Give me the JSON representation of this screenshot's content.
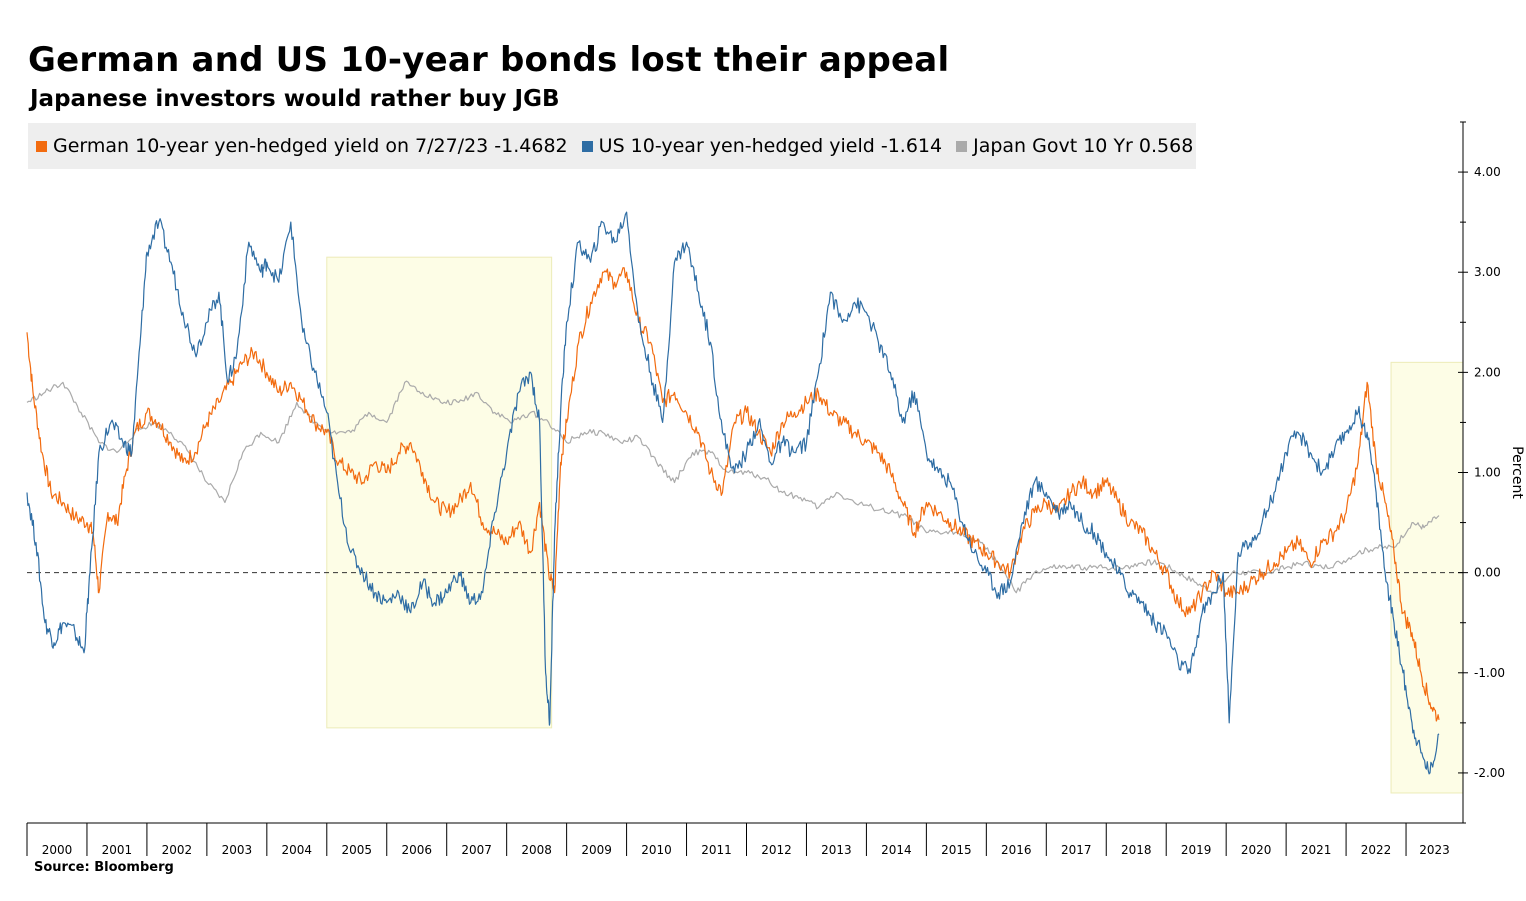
{
  "title": "German and US 10-year bonds lost their appeal",
  "subtitle": "Japanese investors would rather buy JGB",
  "source": "Source: Bloomberg",
  "chart_data": {
    "type": "line",
    "ylabel": "Percent",
    "ylim": [
      -2.5,
      4.5
    ],
    "xlim": [
      2000.0,
      2023.95
    ],
    "y_ticks": [
      4.0,
      3.0,
      2.0,
      1.0,
      0.0,
      -1.0,
      -2.0
    ],
    "y_tick_labels": [
      "4.00",
      "3.00",
      "2.00",
      "1.00",
      "0.00",
      "-1.00",
      "-2.00"
    ],
    "x_tick_labels": [
      "2000",
      "2001",
      "2002",
      "2003",
      "2004",
      "2005",
      "2006",
      "2007",
      "2008",
      "2009",
      "2010",
      "2011",
      "2012",
      "2013",
      "2014",
      "2015",
      "2016",
      "2017",
      "2018",
      "2019",
      "2020",
      "2021",
      "2022",
      "2023"
    ],
    "reference_line": 0.0,
    "highlight_ranges": [
      {
        "x": [
          2005.0,
          2008.75
        ],
        "y": [
          -1.55,
          3.15
        ]
      },
      {
        "x": [
          2022.75,
          2023.95
        ],
        "y": [
          -2.2,
          2.1
        ]
      }
    ],
    "series": [
      {
        "name": "German 10-year yen-hedged yield on 7/27/23 -1.4682",
        "color": "#f26b0f",
        "x": [
          2000.0,
          2000.1,
          2000.25,
          2000.4,
          2000.6,
          2000.8,
          2001.0,
          2001.1,
          2001.2,
          2001.35,
          2001.5,
          2001.65,
          2001.8,
          2002.0,
          2002.2,
          2002.4,
          2002.6,
          2002.8,
          2003.0,
          2003.2,
          2003.4,
          2003.6,
          2003.8,
          2004.0,
          2004.2,
          2004.4,
          2004.6,
          2004.8,
          2005.0,
          2005.2,
          2005.4,
          2005.6,
          2005.8,
          2006.0,
          2006.2,
          2006.4,
          2006.6,
          2006.8,
          2007.0,
          2007.2,
          2007.4,
          2007.6,
          2007.8,
          2008.0,
          2008.2,
          2008.4,
          2008.55,
          2008.7,
          2008.8,
          2008.9,
          2009.0,
          2009.2,
          2009.4,
          2009.6,
          2009.8,
          2010.0,
          2010.2,
          2010.4,
          2010.6,
          2010.8,
          2011.0,
          2011.2,
          2011.4,
          2011.6,
          2011.8,
          2012.0,
          2012.2,
          2012.4,
          2012.6,
          2012.8,
          2013.0,
          2013.2,
          2013.4,
          2013.6,
          2013.8,
          2014.0,
          2014.2,
          2014.4,
          2014.6,
          2014.8,
          2015.0,
          2015.2,
          2015.4,
          2015.6,
          2015.8,
          2016.0,
          2016.2,
          2016.4,
          2016.6,
          2016.8,
          2017.0,
          2017.2,
          2017.4,
          2017.6,
          2017.8,
          2018.0,
          2018.2,
          2018.4,
          2018.6,
          2018.8,
          2019.0,
          2019.2,
          2019.4,
          2019.6,
          2019.8,
          2020.0,
          2020.2,
          2020.4,
          2020.6,
          2020.8,
          2021.0,
          2021.2,
          2021.4,
          2021.6,
          2021.8,
          2022.0,
          2022.2,
          2022.35,
          2022.5,
          2022.65,
          2022.8,
          2022.95,
          2023.1,
          2023.25,
          2023.4,
          2023.55
        ],
        "y": [
          2.4,
          1.8,
          1.2,
          0.8,
          0.7,
          0.55,
          0.5,
          0.4,
          -0.2,
          0.6,
          0.5,
          1.0,
          1.4,
          1.6,
          1.5,
          1.3,
          1.1,
          1.2,
          1.5,
          1.7,
          1.9,
          2.1,
          2.2,
          2.0,
          1.8,
          1.9,
          1.7,
          1.5,
          1.4,
          1.1,
          1.0,
          0.9,
          1.1,
          1.0,
          1.2,
          1.3,
          1.0,
          0.7,
          0.6,
          0.7,
          0.9,
          0.5,
          0.4,
          0.3,
          0.5,
          0.2,
          0.7,
          0.0,
          -0.2,
          1.1,
          1.5,
          2.3,
          2.7,
          3.0,
          2.9,
          3.0,
          2.5,
          2.3,
          1.7,
          1.8,
          1.6,
          1.4,
          1.0,
          0.8,
          1.5,
          1.6,
          1.4,
          1.2,
          1.5,
          1.6,
          1.7,
          1.8,
          1.6,
          1.5,
          1.4,
          1.3,
          1.2,
          1.0,
          0.7,
          0.4,
          0.7,
          0.6,
          0.5,
          0.4,
          0.3,
          0.2,
          0.1,
          0.0,
          0.4,
          0.6,
          0.7,
          0.6,
          0.8,
          0.9,
          0.8,
          0.9,
          0.7,
          0.5,
          0.4,
          0.2,
          0.0,
          -0.3,
          -0.4,
          -0.2,
          0.0,
          -0.2,
          -0.2,
          -0.1,
          0.0,
          0.1,
          0.2,
          0.3,
          0.1,
          0.3,
          0.4,
          0.6,
          1.1,
          1.9,
          1.1,
          0.7,
          0.2,
          -0.4,
          -0.6,
          -1.0,
          -1.3,
          -1.47
        ]
      },
      {
        "name": "US 10-year yen-hedged yield -1.614",
        "color": "#2e6da4",
        "x": [
          2000.0,
          2000.15,
          2000.3,
          2000.45,
          2000.6,
          2000.8,
          2000.95,
          2001.05,
          2001.2,
          2001.4,
          2001.6,
          2001.75,
          2001.9,
          2002.0,
          2002.2,
          2002.4,
          2002.6,
          2002.8,
          2003.0,
          2003.2,
          2003.35,
          2003.5,
          2003.7,
          2003.9,
          2004.0,
          2004.2,
          2004.4,
          2004.6,
          2004.8,
          2005.0,
          2005.2,
          2005.4,
          2005.6,
          2005.8,
          2006.0,
          2006.2,
          2006.4,
          2006.6,
          2006.8,
          2007.0,
          2007.2,
          2007.4,
          2007.6,
          2007.8,
          2008.0,
          2008.2,
          2008.4,
          2008.55,
          2008.65,
          2008.72,
          2008.8,
          2008.9,
          2009.0,
          2009.2,
          2009.4,
          2009.6,
          2009.8,
          2010.0,
          2010.2,
          2010.4,
          2010.6,
          2010.8,
          2011.0,
          2011.2,
          2011.4,
          2011.6,
          2011.8,
          2012.0,
          2012.2,
          2012.4,
          2012.6,
          2012.8,
          2013.0,
          2013.2,
          2013.4,
          2013.6,
          2013.8,
          2014.0,
          2014.2,
          2014.4,
          2014.6,
          2014.8,
          2015.0,
          2015.2,
          2015.4,
          2015.6,
          2015.8,
          2016.0,
          2016.2,
          2016.4,
          2016.6,
          2016.8,
          2017.0,
          2017.2,
          2017.4,
          2017.6,
          2017.8,
          2018.0,
          2018.2,
          2018.4,
          2018.6,
          2018.8,
          2019.0,
          2019.2,
          2019.4,
          2019.6,
          2019.8,
          2019.95,
          2020.05,
          2020.2,
          2020.4,
          2020.6,
          2020.8,
          2021.0,
          2021.2,
          2021.4,
          2021.6,
          2021.8,
          2022.0,
          2022.2,
          2022.35,
          2022.5,
          2022.65,
          2022.8,
          2022.95,
          2023.1,
          2023.25,
          2023.4,
          2023.55
        ],
        "y": [
          0.8,
          0.3,
          -0.5,
          -0.7,
          -0.5,
          -0.6,
          -0.8,
          0.0,
          1.2,
          1.5,
          1.3,
          1.2,
          2.4,
          3.2,
          3.5,
          3.1,
          2.6,
          2.2,
          2.5,
          2.8,
          1.9,
          2.2,
          3.3,
          3.0,
          3.1,
          2.9,
          3.5,
          2.4,
          2.0,
          1.6,
          0.8,
          0.2,
          0.0,
          -0.2,
          -0.3,
          -0.2,
          -0.4,
          -0.1,
          -0.3,
          -0.2,
          0.0,
          -0.3,
          -0.2,
          0.6,
          1.2,
          1.8,
          2.0,
          1.5,
          -1.0,
          -1.5,
          0.4,
          1.6,
          2.5,
          3.3,
          3.1,
          3.5,
          3.3,
          3.6,
          2.5,
          2.0,
          1.5,
          3.1,
          3.3,
          2.8,
          2.3,
          1.4,
          1.0,
          1.2,
          1.5,
          1.1,
          1.3,
          1.2,
          1.3,
          2.0,
          2.8,
          2.5,
          2.7,
          2.6,
          2.3,
          2.0,
          1.5,
          1.8,
          1.2,
          1.0,
          0.9,
          0.5,
          0.2,
          0.0,
          -0.2,
          -0.1,
          0.5,
          0.9,
          0.8,
          0.6,
          0.7,
          0.5,
          0.4,
          0.2,
          0.0,
          -0.2,
          -0.3,
          -0.5,
          -0.6,
          -0.9,
          -1.0,
          -0.4,
          -0.2,
          0.0,
          -1.5,
          0.2,
          0.3,
          0.5,
          0.8,
          1.2,
          1.4,
          1.2,
          1.0,
          1.2,
          1.4,
          1.6,
          1.4,
          0.8,
          0.0,
          -0.5,
          -1.0,
          -1.5,
          -1.8,
          -2.0,
          -1.61
        ]
      },
      {
        "name": "Japan Govt 10 Yr 0.568",
        "color": "#aaaaaa",
        "x": [
          2000.0,
          2000.3,
          2000.6,
          2000.9,
          2001.2,
          2001.5,
          2001.8,
          2002.1,
          2002.4,
          2002.7,
          2003.0,
          2003.3,
          2003.6,
          2003.9,
          2004.2,
          2004.5,
          2004.8,
          2005.1,
          2005.4,
          2005.7,
          2006.0,
          2006.3,
          2006.6,
          2006.9,
          2007.2,
          2007.5,
          2007.8,
          2008.1,
          2008.4,
          2008.7,
          2009.0,
          2009.3,
          2009.6,
          2009.9,
          2010.2,
          2010.5,
          2010.8,
          2011.1,
          2011.4,
          2011.7,
          2012.0,
          2012.3,
          2012.6,
          2012.9,
          2013.2,
          2013.5,
          2013.8,
          2014.1,
          2014.4,
          2014.7,
          2015.0,
          2015.3,
          2015.6,
          2015.9,
          2016.2,
          2016.5,
          2016.8,
          2017.1,
          2017.4,
          2017.7,
          2018.0,
          2018.3,
          2018.6,
          2018.9,
          2019.2,
          2019.5,
          2019.8,
          2020.1,
          2020.4,
          2020.7,
          2021.0,
          2021.3,
          2021.6,
          2021.9,
          2022.2,
          2022.5,
          2022.8,
          2023.1,
          2023.3,
          2023.55
        ],
        "y": [
          1.7,
          1.8,
          1.9,
          1.6,
          1.3,
          1.2,
          1.4,
          1.5,
          1.4,
          1.2,
          0.9,
          0.7,
          1.2,
          1.4,
          1.3,
          1.7,
          1.5,
          1.4,
          1.4,
          1.6,
          1.5,
          1.9,
          1.8,
          1.7,
          1.7,
          1.8,
          1.6,
          1.5,
          1.6,
          1.5,
          1.3,
          1.4,
          1.4,
          1.3,
          1.35,
          1.1,
          0.9,
          1.2,
          1.2,
          1.0,
          1.0,
          0.95,
          0.8,
          0.75,
          0.65,
          0.8,
          0.7,
          0.65,
          0.6,
          0.55,
          0.4,
          0.4,
          0.4,
          0.3,
          0.1,
          -0.2,
          0.0,
          0.05,
          0.05,
          0.05,
          0.05,
          0.05,
          0.1,
          0.1,
          0.0,
          -0.1,
          -0.2,
          0.0,
          0.0,
          0.0,
          0.05,
          0.1,
          0.05,
          0.1,
          0.2,
          0.25,
          0.25,
          0.5,
          0.45,
          0.57
        ]
      }
    ]
  }
}
